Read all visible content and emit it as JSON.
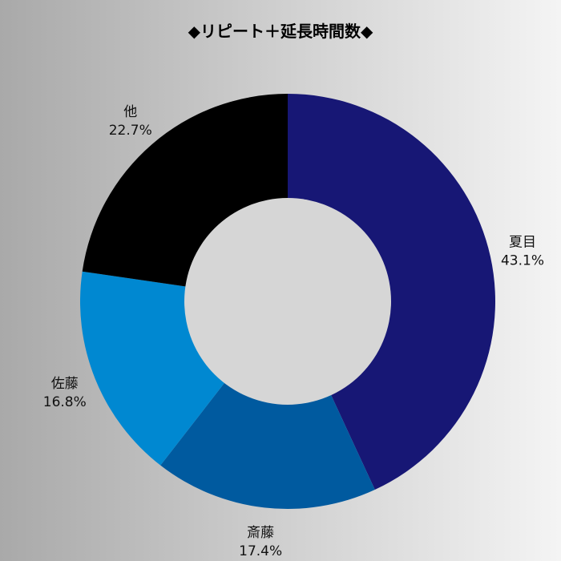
{
  "chart_data": {
    "type": "pie",
    "title": "◆リピート＋延長時間数◆",
    "hole": true,
    "colors": {
      "hole": "#d6d6d6"
    },
    "slices": [
      {
        "name": "夏目",
        "value": 43.1,
        "label": "43.1%",
        "color": "#171775"
      },
      {
        "name": "斎藤",
        "value": 17.4,
        "label": "17.4%",
        "color": "#005a9f"
      },
      {
        "name": "佐藤",
        "value": 16.8,
        "label": "16.8%",
        "color": "#0088d1"
      },
      {
        "name": "他",
        "value": 22.7,
        "label": "22.7%",
        "color": "#000000"
      }
    ]
  }
}
